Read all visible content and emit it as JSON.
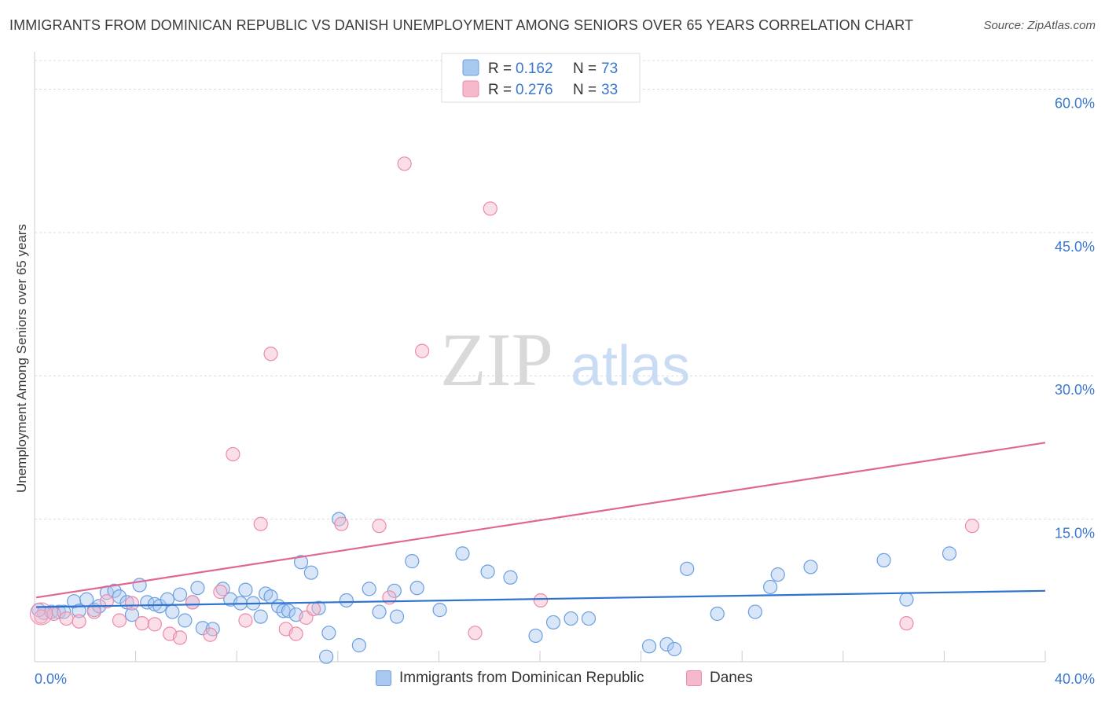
{
  "title": "IMMIGRANTS FROM DOMINICAN REPUBLIC VS DANISH UNEMPLOYMENT AMONG SENIORS OVER 65 YEARS CORRELATION CHART",
  "source": "Source: ZipAtlas.com",
  "watermark": {
    "zip": "ZIP",
    "atlas": "atlas"
  },
  "colors": {
    "blue_fill": "#a9c8f0",
    "blue_stroke": "#6b9fe0",
    "blue_line": "#2f73cf",
    "pink_fill": "#f6b8cb",
    "pink_stroke": "#ec8aa9",
    "pink_line": "#e0688f",
    "value_text": "#3a78d0",
    "grid": "#dcdcdc"
  },
  "legend": {
    "rows": [
      {
        "series": "blue",
        "r_label": "R =",
        "r_value": "0.162",
        "n_label": "N =",
        "n_value": "73"
      },
      {
        "series": "pink",
        "r_label": "R =",
        "r_value": "0.276",
        "n_label": "N =",
        "n_value": "33"
      }
    ]
  },
  "bottom_legend": [
    "Immigrants from Dominican Republic",
    "Danes"
  ],
  "chart_data": {
    "type": "scatter",
    "title": "IMMIGRANTS FROM DOMINICAN REPUBLIC VS DANISH UNEMPLOYMENT AMONG SENIORS OVER 65 YEARS CORRELATION CHART",
    "xlabel": "",
    "ylabel": "Unemployment Among Seniors over 65 years",
    "xlim": [
      0,
      40
    ],
    "ylim": [
      0,
      63
    ],
    "x_tick_labels": [
      "0.0%",
      "40.0%"
    ],
    "y_ticks": [
      15,
      30,
      45,
      60
    ],
    "y_tick_labels": [
      "15.0%",
      "30.0%",
      "45.0%",
      "60.0%"
    ],
    "grid": true,
    "series": [
      {
        "name": "Immigrants from Dominican Republic",
        "color": "blue",
        "r": 0.162,
        "n": 73,
        "trend": {
          "x": [
            0,
            40
          ],
          "y": [
            5.8,
            7.5
          ]
        },
        "points": [
          [
            0.3,
            5.2
          ],
          [
            0.6,
            5.3
          ],
          [
            0.9,
            5.3
          ],
          [
            1.1,
            5.3
          ],
          [
            1.5,
            6.4
          ],
          [
            1.7,
            5.4
          ],
          [
            2.0,
            6.6
          ],
          [
            2.3,
            5.5
          ],
          [
            2.5,
            5.9
          ],
          [
            2.8,
            7.3
          ],
          [
            3.1,
            7.5
          ],
          [
            3.3,
            6.9
          ],
          [
            3.6,
            6.3
          ],
          [
            3.8,
            5.0
          ],
          [
            4.1,
            8.1
          ],
          [
            4.4,
            6.3
          ],
          [
            4.7,
            6.1
          ],
          [
            4.9,
            5.9
          ],
          [
            5.2,
            6.6
          ],
          [
            5.4,
            5.3
          ],
          [
            5.7,
            7.1
          ],
          [
            5.9,
            4.4
          ],
          [
            6.2,
            6.3
          ],
          [
            6.4,
            7.8
          ],
          [
            6.6,
            3.6
          ],
          [
            7.0,
            3.5
          ],
          [
            7.4,
            7.7
          ],
          [
            7.7,
            6.6
          ],
          [
            8.1,
            6.2
          ],
          [
            8.3,
            7.6
          ],
          [
            8.6,
            6.2
          ],
          [
            8.9,
            4.8
          ],
          [
            9.1,
            7.2
          ],
          [
            9.3,
            6.9
          ],
          [
            9.6,
            5.9
          ],
          [
            9.8,
            5.4
          ],
          [
            10.0,
            5.4
          ],
          [
            10.3,
            5.0
          ],
          [
            10.5,
            10.5
          ],
          [
            10.9,
            9.4
          ],
          [
            11.2,
            5.7
          ],
          [
            11.5,
            0.6
          ],
          [
            11.6,
            3.1
          ],
          [
            12.0,
            15.0
          ],
          [
            12.3,
            6.5
          ],
          [
            12.8,
            1.8
          ],
          [
            13.2,
            7.7
          ],
          [
            13.6,
            5.3
          ],
          [
            14.2,
            7.5
          ],
          [
            14.3,
            4.8
          ],
          [
            14.9,
            10.6
          ],
          [
            15.1,
            7.8
          ],
          [
            16.0,
            5.5
          ],
          [
            16.9,
            11.4
          ],
          [
            17.9,
            9.5
          ],
          [
            18.8,
            8.9
          ],
          [
            19.8,
            2.8
          ],
          [
            20.5,
            4.2
          ],
          [
            21.2,
            4.6
          ],
          [
            21.9,
            4.6
          ],
          [
            24.3,
            1.7
          ],
          [
            25.0,
            1.9
          ],
          [
            25.3,
            1.4
          ],
          [
            25.8,
            9.8
          ],
          [
            27.0,
            5.1
          ],
          [
            28.5,
            5.3
          ],
          [
            29.1,
            7.9
          ],
          [
            29.4,
            9.2
          ],
          [
            30.7,
            10.0
          ],
          [
            33.6,
            10.7
          ],
          [
            34.5,
            6.6
          ],
          [
            36.2,
            11.4
          ],
          [
            0.1,
            5.5
          ]
        ]
      },
      {
        "name": "Danes",
        "color": "pink",
        "r": 0.276,
        "n": 33,
        "trend": {
          "x": [
            0,
            40
          ],
          "y": [
            6.8,
            23.0
          ]
        },
        "points": [
          [
            0.2,
            4.8
          ],
          [
            0.7,
            5.1
          ],
          [
            1.2,
            4.6
          ],
          [
            1.7,
            4.3
          ],
          [
            2.3,
            5.3
          ],
          [
            2.8,
            6.4
          ],
          [
            3.3,
            4.4
          ],
          [
            3.8,
            6.2
          ],
          [
            4.2,
            4.1
          ],
          [
            4.7,
            4.0
          ],
          [
            5.3,
            3.0
          ],
          [
            5.7,
            2.6
          ],
          [
            6.2,
            6.3
          ],
          [
            6.9,
            2.9
          ],
          [
            7.3,
            7.4
          ],
          [
            7.8,
            21.8
          ],
          [
            8.3,
            4.4
          ],
          [
            8.9,
            14.5
          ],
          [
            9.3,
            32.3
          ],
          [
            9.9,
            3.5
          ],
          [
            10.3,
            3.0
          ],
          [
            10.7,
            4.7
          ],
          [
            11.0,
            5.6
          ],
          [
            12.1,
            14.5
          ],
          [
            13.6,
            14.3
          ],
          [
            14.0,
            6.8
          ],
          [
            14.6,
            52.2
          ],
          [
            15.3,
            32.6
          ],
          [
            17.4,
            3.1
          ],
          [
            18.0,
            47.5
          ],
          [
            20.0,
            6.5
          ],
          [
            34.5,
            4.1
          ],
          [
            37.1,
            14.3
          ]
        ]
      }
    ]
  }
}
